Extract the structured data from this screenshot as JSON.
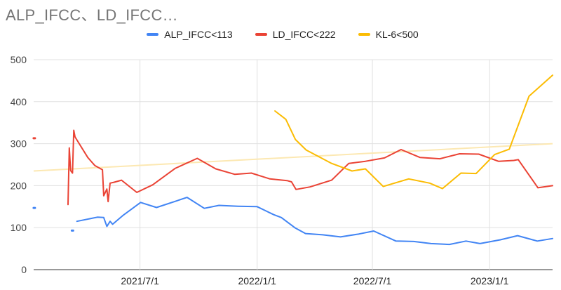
{
  "chart_data": {
    "type": "line",
    "title": "ALP_IFCC、LD_IFCC…",
    "xlabel": "",
    "ylabel": "",
    "ylim": [
      0,
      500
    ],
    "y_ticks": [
      "0",
      "100",
      "200",
      "300",
      "400",
      "500"
    ],
    "x_ticks": [
      "2021/7/1",
      "2022/1/1",
      "2022/7/1",
      "2023/1/1"
    ],
    "x_range": [
      "2021-01-15",
      "2023-04-10"
    ],
    "legend_position": "top",
    "series": [
      {
        "name": "ALP_IFCC<113",
        "color": "#4285f4",
        "segments": [
          [
            [
              "2021-01-16",
              147
            ]
          ],
          [
            [
              "2021-03-17",
              93
            ]
          ],
          [
            [
              "2021-03-24",
              115
            ],
            [
              "2021-04-25",
              125
            ],
            [
              "2021-05-05",
              124
            ],
            [
              "2021-05-10",
              103
            ],
            [
              "2021-05-15",
              115
            ],
            [
              "2021-05-19",
              108
            ],
            [
              "2021-06-05",
              130
            ],
            [
              "2021-07-02",
              160
            ],
            [
              "2021-07-27",
              148
            ],
            [
              "2021-08-28",
              164
            ],
            [
              "2021-09-13",
              172
            ],
            [
              "2021-10-10",
              146
            ],
            [
              "2021-11-02",
              153
            ],
            [
              "2021-12-02",
              151
            ],
            [
              "2022-01-01",
              150
            ],
            [
              "2022-01-27",
              131
            ],
            [
              "2022-02-08",
              124
            ],
            [
              "2022-03-02",
              99
            ],
            [
              "2022-03-18",
              86
            ],
            [
              "2022-04-14",
              83
            ],
            [
              "2022-05-12",
              78
            ],
            [
              "2022-06-10",
              85
            ],
            [
              "2022-07-03",
              92
            ],
            [
              "2022-08-07",
              68
            ],
            [
              "2022-09-04",
              67
            ],
            [
              "2022-10-01",
              62
            ],
            [
              "2022-10-30",
              60
            ],
            [
              "2022-11-25",
              68
            ],
            [
              "2022-12-17",
              62
            ],
            [
              "2023-01-18",
              71
            ],
            [
              "2023-02-14",
              81
            ],
            [
              "2023-03-17",
              68
            ],
            [
              "2023-04-10",
              74
            ]
          ]
        ]
      },
      {
        "name": "LD_IFCC<222",
        "color": "#ea4335",
        "segments": [
          [
            [
              "2021-01-16",
              313
            ]
          ],
          [
            [
              "2021-03-10",
              155
            ],
            [
              "2021-03-12",
              290
            ],
            [
              "2021-03-14",
              236
            ],
            [
              "2021-03-17",
              230
            ],
            [
              "2021-03-19",
              332
            ],
            [
              "2021-03-21",
              316
            ],
            [
              "2021-04-10",
              267
            ],
            [
              "2021-04-21",
              248
            ],
            [
              "2021-05-03",
              238
            ],
            [
              "2021-05-05",
              176
            ],
            [
              "2021-05-10",
              192
            ],
            [
              "2021-05-12",
              162
            ],
            [
              "2021-05-15",
              206
            ],
            [
              "2021-05-21",
              208
            ],
            [
              "2021-06-02",
              213
            ],
            [
              "2021-06-26",
              184
            ],
            [
              "2021-07-21",
              202
            ],
            [
              "2021-08-25",
              241
            ],
            [
              "2021-09-29",
              265
            ],
            [
              "2021-10-28",
              240
            ],
            [
              "2021-11-27",
              227
            ],
            [
              "2021-12-23",
              230
            ],
            [
              "2022-01-21",
              216
            ],
            [
              "2022-02-17",
              212
            ],
            [
              "2022-02-24",
              209
            ],
            [
              "2022-03-03",
              191
            ],
            [
              "2022-03-25",
              197
            ],
            [
              "2022-04-13",
              206
            ],
            [
              "2022-04-28",
              213
            ],
            [
              "2022-05-25",
              253
            ],
            [
              "2022-06-20",
              258
            ],
            [
              "2022-07-20",
              266
            ],
            [
              "2022-08-15",
              286
            ],
            [
              "2022-09-14",
              267
            ],
            [
              "2022-10-15",
              264
            ],
            [
              "2022-11-15",
              276
            ],
            [
              "2022-12-15",
              275
            ],
            [
              "2023-01-15",
              258
            ],
            [
              "2023-02-08",
              260
            ],
            [
              "2023-02-15",
              262
            ],
            [
              "2023-03-18",
              195
            ],
            [
              "2023-04-10",
              200
            ]
          ]
        ]
      },
      {
        "name": "KL-6<500",
        "color": "#fbbc04",
        "segments": [
          [
            [
              "2022-01-29",
              378
            ],
            [
              "2022-02-15",
              358
            ],
            [
              "2022-03-02",
              310
            ],
            [
              "2022-03-19",
              285
            ],
            [
              "2022-04-28",
              253
            ],
            [
              "2022-05-30",
              235
            ],
            [
              "2022-06-20",
              240
            ],
            [
              "2022-07-18",
              198
            ],
            [
              "2022-08-27",
              216
            ],
            [
              "2022-09-29",
              206
            ],
            [
              "2022-10-19",
              193
            ],
            [
              "2022-11-17",
              230
            ],
            [
              "2022-12-11",
              229
            ],
            [
              "2023-01-09",
              274
            ],
            [
              "2023-02-01",
              287
            ],
            [
              "2023-03-04",
              413
            ],
            [
              "2023-04-10",
              463
            ]
          ]
        ]
      }
    ],
    "trendline": {
      "color": "#fce8b2",
      "points": [
        [
          "2021-01-15",
          235
        ],
        [
          "2023-04-10",
          300
        ]
      ]
    }
  }
}
